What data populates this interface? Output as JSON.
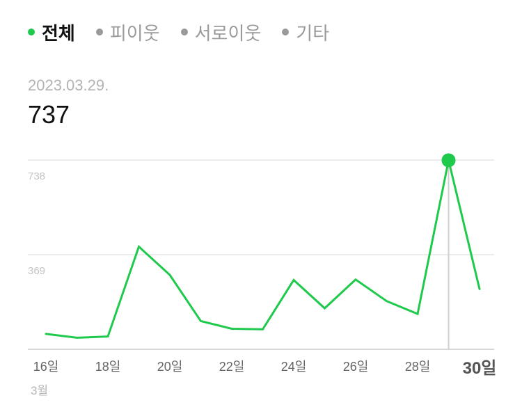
{
  "tabs": [
    {
      "label": "전체",
      "active": true
    },
    {
      "label": "피이웃",
      "active": false
    },
    {
      "label": "서로이웃",
      "active": false
    },
    {
      "label": "기타",
      "active": false
    }
  ],
  "selected": {
    "date": "2023.03.29.",
    "value": "737"
  },
  "colors": {
    "line": "#1ec94c",
    "grid": "#e6e6e6",
    "axis": "#cccccc",
    "tick_label": "#555555",
    "muted": "#c4c4c4"
  },
  "chart_data": {
    "type": "line",
    "x": [
      16,
      17,
      18,
      19,
      20,
      21,
      22,
      23,
      24,
      25,
      26,
      27,
      28,
      29,
      30
    ],
    "y": [
      60,
      45,
      50,
      400,
      290,
      110,
      80,
      78,
      270,
      160,
      272,
      188,
      138,
      737,
      235
    ],
    "x_ticks": [
      {
        "x": 16,
        "label": "16일"
      },
      {
        "x": 18,
        "label": "18일"
      },
      {
        "x": 20,
        "label": "20일"
      },
      {
        "x": 22,
        "label": "22일"
      },
      {
        "x": 24,
        "label": "24일"
      },
      {
        "x": 26,
        "label": "26일"
      },
      {
        "x": 28,
        "label": "28일"
      },
      {
        "x": 30,
        "label": "30일",
        "emphasis": true
      }
    ],
    "y_ticks": [
      {
        "value": 369,
        "label": "369"
      },
      {
        "value": 738,
        "label": "738"
      }
    ],
    "month_label": "3월",
    "highlight_x": 29,
    "ylim": [
      0,
      738
    ],
    "xlim": [
      16,
      30
    ]
  }
}
